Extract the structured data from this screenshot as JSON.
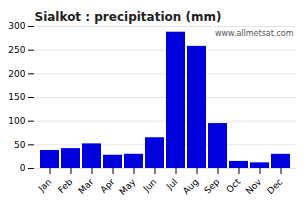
{
  "chart_data": {
    "type": "bar",
    "title": "Sialkot : precipitation (mm)",
    "categories": [
      "Jan",
      "Feb",
      "Mar",
      "Apr",
      "May",
      "Jun",
      "Jul",
      "Aug",
      "Sep",
      "Oct",
      "Nov",
      "Dec"
    ],
    "values": [
      38,
      42,
      52,
      28,
      30,
      65,
      288,
      258,
      95,
      15,
      12,
      30
    ],
    "color": "#0000dd",
    "ylim": [
      0,
      300
    ],
    "yticks": [
      0,
      50,
      100,
      150,
      200,
      250,
      300
    ],
    "grid": true,
    "annotations": [
      "www.allmetsat.com"
    ]
  }
}
